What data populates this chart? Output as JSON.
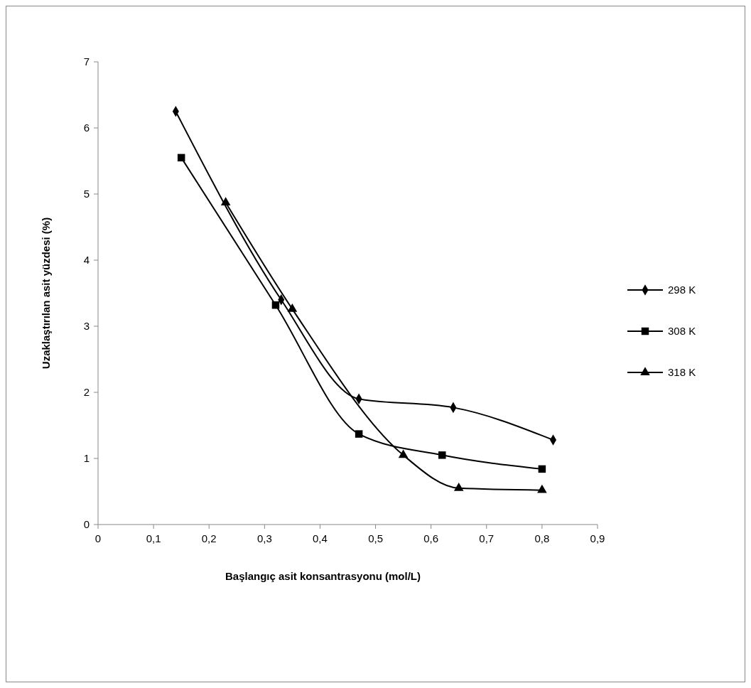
{
  "chart_data": {
    "type": "line",
    "xlabel": "Başlangıç asit konsantrasyonu (mol/L)",
    "ylabel": "Uzaklaştırılan asit yüzdesi (%)",
    "xlim": [
      0,
      0.9
    ],
    "xticks": [
      0,
      {
        "value": 0.1,
        "label": "0,1"
      },
      {
        "value": 0.2,
        "label": "0,2"
      },
      {
        "value": 0.3,
        "label": "0,3"
      },
      {
        "value": 0.4,
        "label": "0,4"
      },
      {
        "value": 0.5,
        "label": "0,5"
      },
      {
        "value": 0.6,
        "label": "0,6"
      },
      {
        "value": 0.7,
        "label": "0,7"
      },
      {
        "value": 0.8,
        "label": "0,8"
      },
      {
        "value": 0.9,
        "label": "0,9"
      }
    ],
    "ylim": [
      0,
      7
    ],
    "yticks": [
      0,
      1,
      2,
      3,
      4,
      5,
      6,
      7
    ],
    "grid": false,
    "legend": "right",
    "line_style": "solid",
    "series": [
      {
        "name": "298 K",
        "color": "#000000",
        "marker": "diamond",
        "x": [
          0.14,
          0.33,
          0.47,
          0.64,
          0.82
        ],
        "values": [
          6.25,
          3.4,
          1.9,
          1.77,
          1.28
        ]
      },
      {
        "name": "308 K",
        "color": "#000000",
        "marker": "square",
        "x": [
          0.15,
          0.32,
          0.47,
          0.62,
          0.8
        ],
        "values": [
          5.55,
          3.32,
          1.37,
          1.05,
          0.84
        ]
      },
      {
        "name": "318 K",
        "color": "#000000",
        "marker": "triangle",
        "x": [
          0.23,
          0.35,
          0.55,
          0.65,
          0.8
        ],
        "values": [
          4.87,
          3.26,
          1.05,
          0.55,
          0.52
        ]
      }
    ]
  }
}
